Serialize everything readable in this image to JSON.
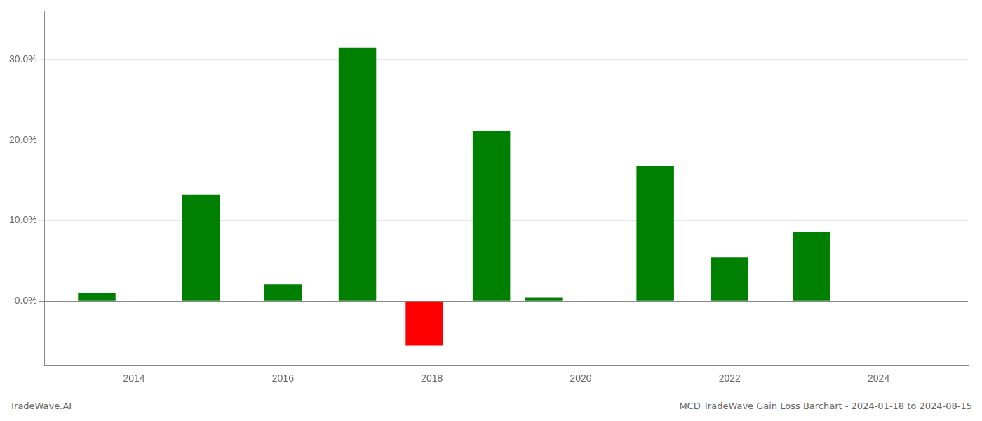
{
  "chart_data": {
    "type": "bar",
    "x": [
      2013.5,
      2014.9,
      2016.0,
      2017.0,
      2017.9,
      2018.8,
      2019.5,
      2021.0,
      2022.0,
      2023.1
    ],
    "values": [
      0.01,
      0.132,
      0.021,
      0.315,
      -0.055,
      0.211,
      0.005,
      0.168,
      0.055,
      0.086
    ],
    "colors": [
      "#008000",
      "#008000",
      "#008000",
      "#008000",
      "#ff0000",
      "#008000",
      "#008000",
      "#008000",
      "#008000",
      "#008000"
    ],
    "xlim": [
      2012.8,
      2025.2
    ],
    "xticks": [
      2014,
      2016,
      2018,
      2020,
      2022,
      2024
    ],
    "ylim": [
      -0.08,
      0.36
    ],
    "yticks": [
      {
        "value": 0.0,
        "label": "0.0%"
      },
      {
        "value": 0.1,
        "label": "10.0%"
      },
      {
        "value": 0.2,
        "label": "20.0%"
      },
      {
        "value": 0.3,
        "label": "30.0%"
      }
    ],
    "grid": true,
    "annotations": [
      "TradeWave.AI",
      "MCD TradeWave Gain Loss Barchart - 2024-01-18 to 2024-08-15"
    ]
  }
}
